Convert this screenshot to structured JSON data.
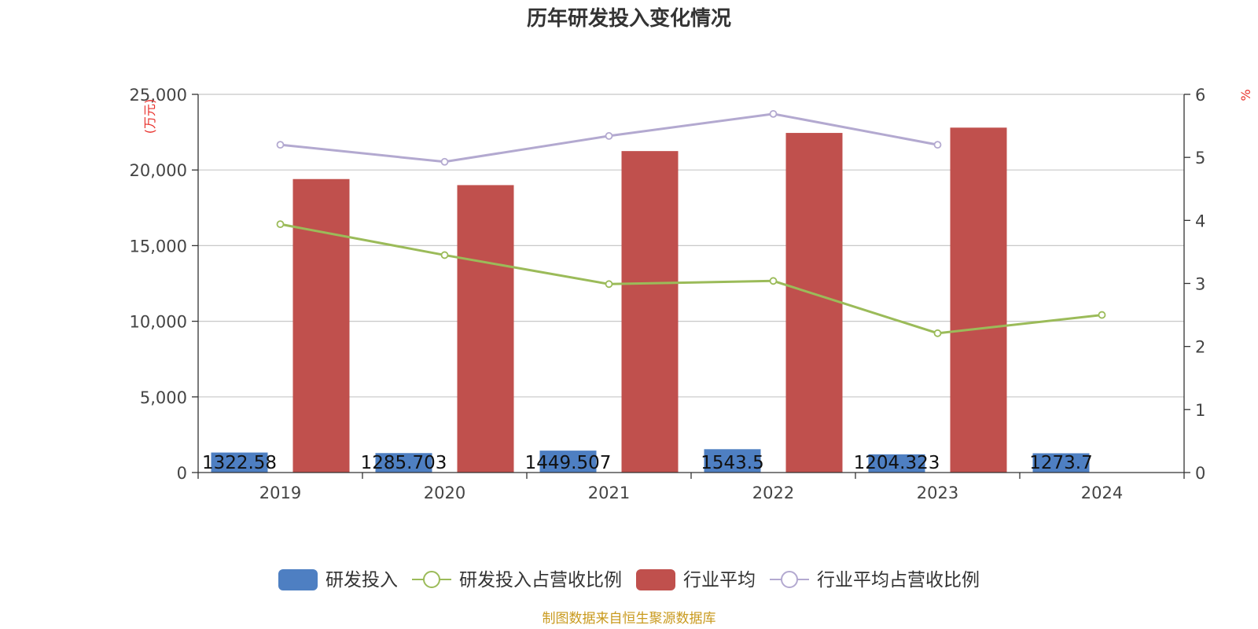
{
  "chart_data": {
    "type": "bar",
    "title": "历年研发投入变化情况",
    "categories": [
      "2019",
      "2020",
      "2021",
      "2022",
      "2023",
      "2024"
    ],
    "y_left": {
      "unit": "(万元)",
      "ylim": [
        0,
        25000
      ],
      "ticks": [
        "0",
        "5,000",
        "10,000",
        "15,000",
        "20,000",
        "25,000"
      ]
    },
    "y_right": {
      "unit": "%",
      "ylim": [
        0,
        6
      ],
      "ticks": [
        "0",
        "1",
        "2",
        "3",
        "4",
        "5",
        "6"
      ]
    },
    "grid": true,
    "series": [
      {
        "name": "研发投入",
        "type": "bar",
        "axis": "left",
        "color": "#4e7fc2",
        "values": [
          1322.58,
          1285.703,
          1449.507,
          1543.5,
          1204.323,
          1273.7
        ],
        "labels": [
          "1322.58",
          "1285.703",
          "1449.507",
          "1543.5",
          "1204.323",
          "1273.7"
        ]
      },
      {
        "name": "研发投入占营收比例",
        "type": "line",
        "axis": "right",
        "color": "#9bbb59",
        "values": [
          3.94,
          3.45,
          2.99,
          3.04,
          2.21,
          2.5
        ]
      },
      {
        "name": "行业平均",
        "type": "bar",
        "axis": "left",
        "color": "#c0504d",
        "values": [
          19400,
          19000,
          21250,
          22450,
          22800,
          null
        ]
      },
      {
        "name": "行业平均占营收比例",
        "type": "line",
        "axis": "right",
        "color": "#b3a9d0",
        "values": [
          5.2,
          4.93,
          5.34,
          5.69,
          5.2,
          null
        ]
      }
    ],
    "legend_position": "bottom"
  },
  "footer": {
    "source": "制图数据来自恒生聚源数据库"
  }
}
